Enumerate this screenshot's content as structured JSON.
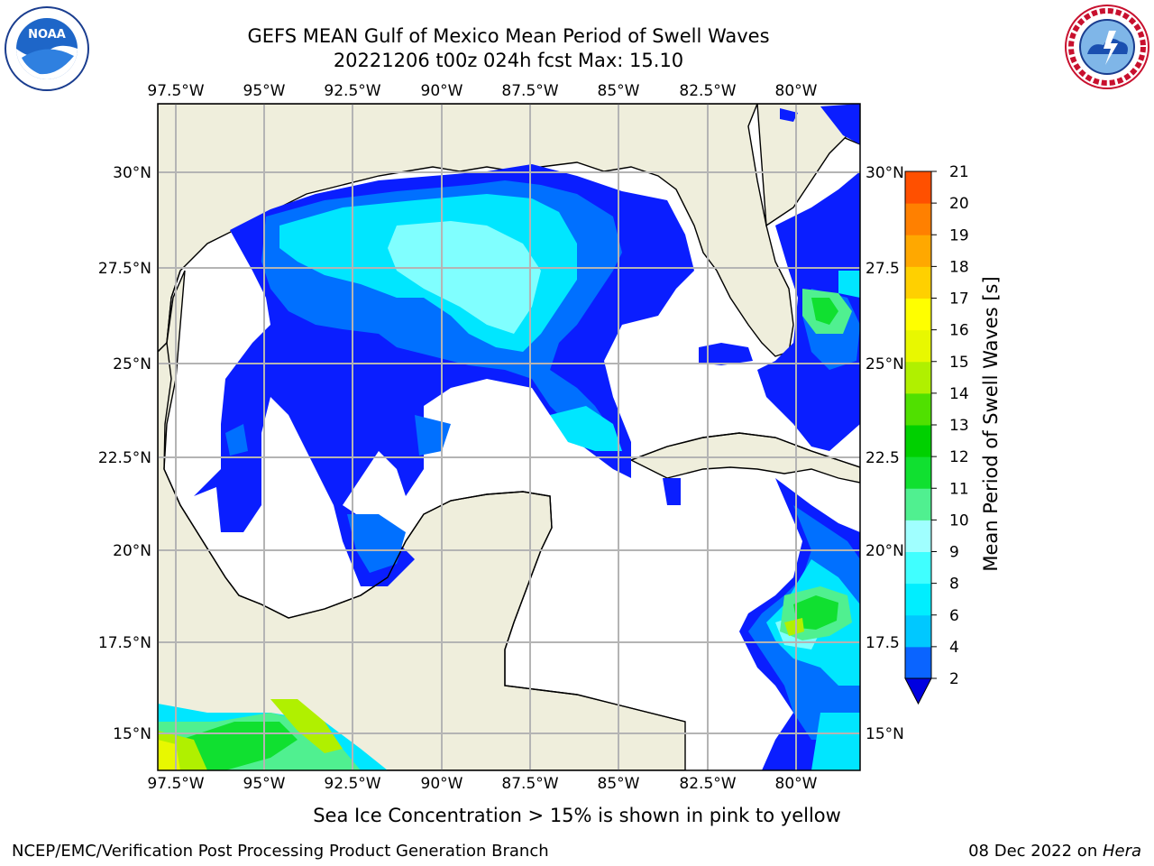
{
  "header": {
    "title_line1": "GEFS MEAN Gulf of Mexico Mean Period of Swell Waves",
    "title_line2": "20221206 t00z 024h fcst   Max: 15.10"
  },
  "logos": {
    "left": "NOAA",
    "right": "NATIONAL WEATHER SERVICE"
  },
  "map": {
    "lon_labels": [
      "97.5°W",
      "95°W",
      "92.5°W",
      "90°W",
      "87.5°W",
      "85°W",
      "82.5°W",
      "80°W"
    ],
    "lat_labels_left": [
      "30°N",
      "27.5°N",
      "25°N",
      "22.5°N",
      "20°N",
      "17.5°N",
      "15°N"
    ],
    "lat_labels_right": [
      "30°N",
      "27.5",
      "25°N",
      "22.5",
      "20°N",
      "17.5",
      "15°N"
    ]
  },
  "colorbar": {
    "label": "Mean Period of Swell Waves [s]",
    "ticks": [
      "2",
      "4",
      "6",
      "8",
      "9",
      "10",
      "11",
      "12",
      "13",
      "14",
      "15",
      "16",
      "17",
      "18",
      "19",
      "20",
      "21"
    ],
    "colors": [
      "#0a64ff",
      "#00c8ff",
      "#00eeff",
      "#40ffff",
      "#a0ffff",
      "#50f090",
      "#10e030",
      "#00d000",
      "#50e000",
      "#b0f000",
      "#e8f800",
      "#ffff00",
      "#ffd000",
      "#ffa800",
      "#ff8000",
      "#ff5000",
      "#ff2000",
      "#ff0000"
    ]
  },
  "footer": {
    "note": "Sea Ice Concentration > 15% is shown in pink to yellow",
    "left": "NCEP/EMC/Verification Post Processing Product Generation Branch",
    "right_date": "08 Dec 2022 on ",
    "right_host": "Hera"
  }
}
